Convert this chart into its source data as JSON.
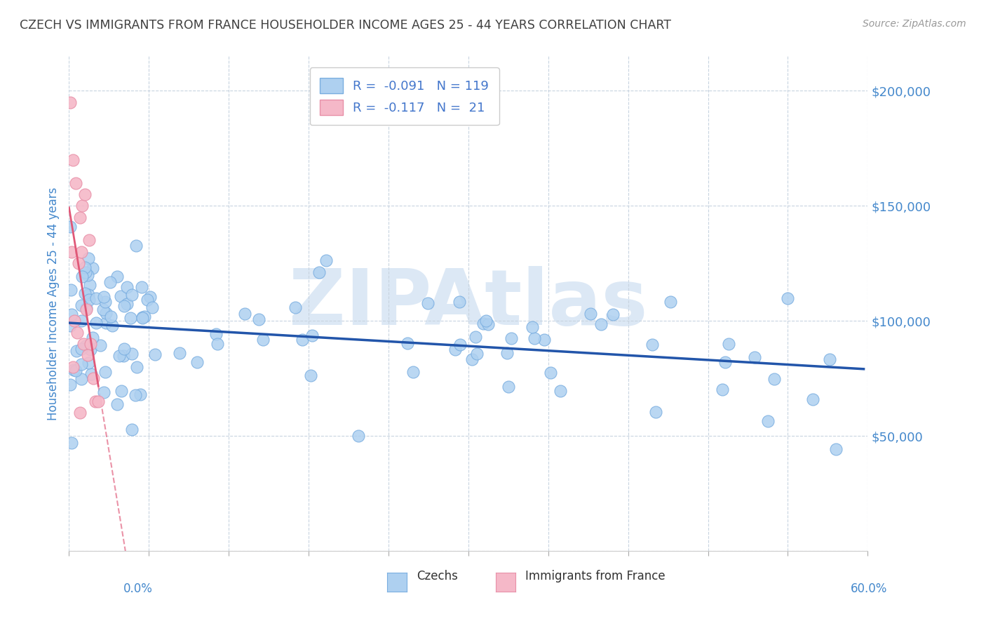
{
  "title": "CZECH VS IMMIGRANTS FROM FRANCE HOUSEHOLDER INCOME AGES 25 - 44 YEARS CORRELATION CHART",
  "source": "Source: ZipAtlas.com",
  "ylabel": "Householder Income Ages 25 - 44 years",
  "ytick_vals": [
    0,
    50000,
    100000,
    150000,
    200000
  ],
  "ytick_labels": [
    "",
    "$50,000",
    "$100,000",
    "$150,000",
    "$200,000"
  ],
  "xmin": 0.0,
  "xmax": 0.6,
  "ymin": 0,
  "ymax": 215000,
  "czech_R": -0.091,
  "czech_N": 119,
  "france_R": -0.117,
  "france_N": 21,
  "czech_color": "#aed0f0",
  "czech_edge": "#7aaee0",
  "france_color": "#f5b8c8",
  "france_edge": "#e890a8",
  "czech_line_color": "#2255aa",
  "france_line_color": "#e05878",
  "france_line_solid_color": "#e05878",
  "legend_text_color": "#4477cc",
  "title_color": "#404040",
  "axis_label_color": "#4488cc",
  "watermark_color": "#dce8f5",
  "grid_color": "#c8d4e0",
  "background_color": "#ffffff"
}
